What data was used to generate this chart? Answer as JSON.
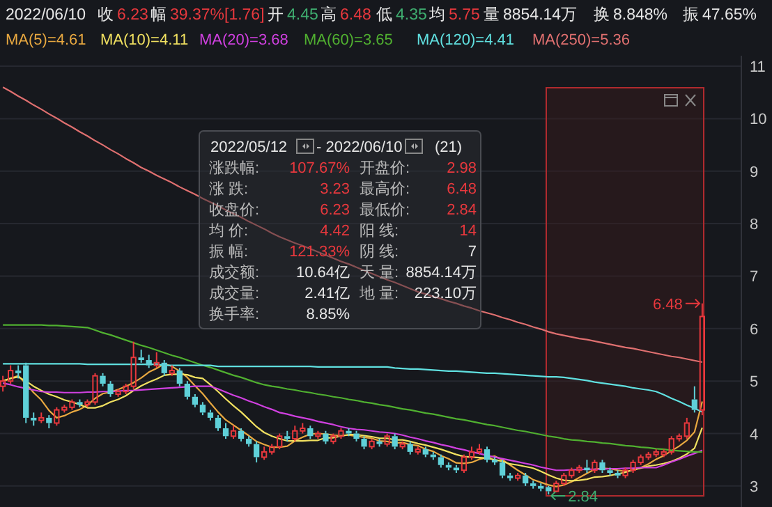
{
  "chart_data": {
    "type": "candlestick",
    "categories": [
      null,
      null,
      null,
      null,
      null,
      null,
      null,
      null,
      null,
      null,
      null,
      null,
      null,
      null,
      null,
      null,
      null,
      null,
      null,
      null,
      null,
      null,
      null,
      null,
      null,
      null,
      null,
      null,
      null,
      null,
      null,
      null,
      null,
      null,
      null,
      null,
      null,
      null,
      null,
      null,
      null,
      null,
      null,
      null,
      null,
      null,
      null,
      null,
      null,
      null,
      null,
      null,
      null,
      null,
      null,
      null,
      null,
      null,
      null,
      null,
      null,
      null,
      null,
      null,
      null,
      null,
      null,
      null,
      null,
      null,
      null,
      null,
      null,
      null,
      null,
      null,
      null,
      null,
      null,
      null,
      null,
      null,
      null,
      null,
      null,
      null,
      null,
      null,
      null,
      null,
      null,
      null
    ],
    "ylim": [
      2.6,
      11.2
    ],
    "yticks": [
      3,
      4,
      5,
      6,
      7,
      8,
      9,
      10,
      11
    ],
    "grid": "y",
    "legend": "top left",
    "tick_labels": "y",
    "ohlc": [
      [
        4.9,
        5.1,
        4.8,
        5.0
      ],
      [
        5.0,
        5.3,
        4.95,
        5.2
      ],
      [
        5.2,
        5.3,
        5.05,
        5.15
      ],
      [
        5.3,
        5.35,
        4.2,
        4.3
      ],
      [
        4.3,
        4.4,
        4.15,
        4.25
      ],
      [
        4.25,
        4.4,
        4.2,
        4.3
      ],
      [
        4.3,
        4.35,
        4.1,
        4.2
      ],
      [
        4.2,
        4.5,
        4.15,
        4.45
      ],
      [
        4.45,
        4.55,
        4.4,
        4.5
      ],
      [
        4.5,
        4.65,
        4.45,
        4.6
      ],
      [
        4.6,
        4.65,
        4.5,
        4.55
      ],
      [
        4.55,
        4.65,
        4.5,
        4.6
      ],
      [
        4.6,
        5.15,
        4.55,
        5.1
      ],
      [
        5.1,
        5.15,
        4.9,
        4.95
      ],
      [
        4.95,
        5.0,
        4.7,
        4.75
      ],
      [
        4.75,
        4.85,
        4.7,
        4.8
      ],
      [
        4.8,
        4.95,
        4.75,
        4.9
      ],
      [
        4.9,
        5.75,
        4.85,
        5.45
      ],
      [
        5.45,
        5.6,
        5.35,
        5.4
      ],
      [
        5.4,
        5.5,
        5.25,
        5.3
      ],
      [
        5.3,
        5.55,
        5.25,
        5.35
      ],
      [
        5.35,
        5.4,
        5.1,
        5.15
      ],
      [
        5.15,
        5.3,
        5.1,
        5.2
      ],
      [
        5.2,
        5.25,
        4.9,
        4.95
      ],
      [
        4.95,
        5.0,
        4.65,
        4.7
      ],
      [
        4.7,
        4.75,
        4.5,
        4.55
      ],
      [
        4.55,
        4.6,
        4.35,
        4.4
      ],
      [
        4.4,
        4.45,
        4.25,
        4.3
      ],
      [
        4.3,
        4.35,
        4.05,
        4.1
      ],
      [
        4.1,
        4.2,
        3.9,
        3.95
      ],
      [
        3.95,
        4.15,
        3.9,
        4.05
      ],
      [
        4.05,
        4.1,
        3.85,
        3.9
      ],
      [
        3.9,
        3.95,
        3.75,
        3.8
      ],
      [
        3.8,
        3.85,
        3.45,
        3.55
      ],
      [
        3.55,
        3.75,
        3.5,
        3.65
      ],
      [
        3.65,
        3.8,
        3.6,
        3.75
      ],
      [
        3.75,
        4.0,
        3.7,
        3.95
      ],
      [
        3.95,
        4.05,
        3.85,
        3.9
      ],
      [
        3.9,
        4.15,
        3.85,
        4.05
      ],
      [
        4.05,
        4.2,
        4.0,
        4.1
      ],
      [
        4.1,
        4.15,
        3.9,
        3.95
      ],
      [
        3.95,
        4.05,
        3.9,
        4.0
      ],
      [
        4.0,
        4.05,
        3.8,
        3.85
      ],
      [
        3.85,
        4.0,
        3.8,
        3.95
      ],
      [
        3.95,
        4.1,
        3.9,
        4.05
      ],
      [
        4.05,
        4.1,
        3.95,
        4.0
      ],
      [
        4.0,
        4.05,
        3.85,
        3.9
      ],
      [
        3.9,
        3.95,
        3.7,
        3.75
      ],
      [
        3.75,
        3.9,
        3.7,
        3.85
      ],
      [
        3.85,
        3.9,
        3.75,
        3.8
      ],
      [
        3.8,
        4.0,
        3.75,
        3.95
      ],
      [
        3.95,
        4.0,
        3.7,
        3.75
      ],
      [
        3.75,
        3.85,
        3.7,
        3.8
      ],
      [
        3.8,
        3.85,
        3.6,
        3.65
      ],
      [
        3.65,
        3.75,
        3.6,
        3.7
      ],
      [
        3.7,
        3.75,
        3.55,
        3.6
      ],
      [
        3.6,
        3.65,
        3.5,
        3.55
      ],
      [
        3.55,
        3.6,
        3.35,
        3.4
      ],
      [
        3.4,
        3.45,
        3.3,
        3.35
      ],
      [
        3.35,
        3.4,
        3.25,
        3.3
      ],
      [
        3.3,
        3.6,
        3.25,
        3.55
      ],
      [
        3.55,
        3.75,
        3.5,
        3.65
      ],
      [
        3.65,
        3.8,
        3.6,
        3.7
      ],
      [
        3.7,
        3.75,
        3.45,
        3.5
      ],
      [
        3.5,
        3.55,
        3.4,
        3.45
      ],
      [
        3.45,
        3.5,
        3.15,
        3.2
      ],
      [
        3.2,
        3.25,
        3.1,
        3.15
      ],
      [
        3.15,
        3.25,
        3.1,
        3.2
      ],
      [
        3.2,
        3.25,
        3.0,
        3.05
      ],
      [
        3.05,
        3.1,
        2.95,
        3.0
      ],
      [
        3.0,
        3.05,
        2.9,
        2.95
      ],
      [
        2.98,
        3.0,
        2.84,
        2.9
      ],
      [
        2.9,
        3.1,
        2.88,
        3.05
      ],
      [
        3.05,
        3.25,
        3.0,
        3.2
      ],
      [
        3.2,
        3.35,
        3.15,
        3.3
      ],
      [
        3.3,
        3.4,
        3.25,
        3.35
      ],
      [
        3.35,
        3.5,
        3.25,
        3.3
      ],
      [
        3.3,
        3.5,
        3.25,
        3.45
      ],
      [
        3.45,
        3.5,
        3.25,
        3.3
      ],
      [
        3.3,
        3.35,
        3.2,
        3.25
      ],
      [
        3.25,
        3.3,
        3.15,
        3.2
      ],
      [
        3.2,
        3.35,
        3.15,
        3.3
      ],
      [
        3.3,
        3.5,
        3.25,
        3.45
      ],
      [
        3.45,
        3.6,
        3.4,
        3.55
      ],
      [
        3.55,
        3.65,
        3.5,
        3.6
      ],
      [
        3.6,
        3.7,
        3.55,
        3.65
      ],
      [
        3.6,
        3.7,
        3.55,
        3.65
      ],
      [
        3.65,
        3.95,
        3.6,
        3.9
      ],
      [
        3.9,
        4.0,
        3.85,
        3.95
      ],
      [
        3.95,
        4.3,
        3.9,
        4.2
      ],
      [
        4.65,
        4.9,
        4.4,
        4.45
      ],
      [
        4.45,
        6.48,
        4.35,
        6.23
      ]
    ],
    "series": [
      {
        "name": "MA(5)=4.61",
        "type": "line",
        "color": "#e8a840",
        "values": [
          5.0,
          5.05,
          5.1,
          4.95,
          4.78,
          4.64,
          4.44,
          4.3,
          4.34,
          4.41,
          4.46,
          4.54,
          4.67,
          4.76,
          4.79,
          4.84,
          4.9,
          4.97,
          5.06,
          5.17,
          5.24,
          5.33,
          5.28,
          5.19,
          5.07,
          4.91,
          4.76,
          4.58,
          4.41,
          4.26,
          4.16,
          4.06,
          3.96,
          3.85,
          3.79,
          3.74,
          3.74,
          3.76,
          3.86,
          3.93,
          3.99,
          4.0,
          3.99,
          3.97,
          3.96,
          3.97,
          3.95,
          3.93,
          3.91,
          3.86,
          3.85,
          3.82,
          3.83,
          3.79,
          3.77,
          3.7,
          3.66,
          3.58,
          3.52,
          3.44,
          3.43,
          3.45,
          3.51,
          3.54,
          3.57,
          3.5,
          3.4,
          3.3,
          3.21,
          3.12,
          3.07,
          3.02,
          2.99,
          3.02,
          3.08,
          3.16,
          3.24,
          3.32,
          3.34,
          3.33,
          3.3,
          3.28,
          3.3,
          3.35,
          3.42,
          3.51,
          3.58,
          3.67,
          3.76,
          3.87,
          4.03,
          4.61
        ]
      },
      {
        "name": "MA(10)=4.11",
        "type": "line",
        "color": "#f0e060",
        "values": [
          5.0,
          5.05,
          5.08,
          5.0,
          4.9,
          4.82,
          4.75,
          4.7,
          4.64,
          4.6,
          4.55,
          4.49,
          4.49,
          4.53,
          4.6,
          4.65,
          4.72,
          4.82,
          4.91,
          4.98,
          5.04,
          5.11,
          5.13,
          5.13,
          5.12,
          5.07,
          5.05,
          4.93,
          4.8,
          4.66,
          4.53,
          4.41,
          4.27,
          4.13,
          4.02,
          3.95,
          3.9,
          3.86,
          3.86,
          3.86,
          3.87,
          3.87,
          3.92,
          3.92,
          3.95,
          3.98,
          3.98,
          3.96,
          3.94,
          3.91,
          3.91,
          3.88,
          3.88,
          3.85,
          3.81,
          3.78,
          3.74,
          3.7,
          3.65,
          3.6,
          3.56,
          3.55,
          3.54,
          3.53,
          3.5,
          3.47,
          3.42,
          3.4,
          3.37,
          3.34,
          3.28,
          3.21,
          3.15,
          3.11,
          3.1,
          3.11,
          3.13,
          3.17,
          3.18,
          3.2,
          3.23,
          3.26,
          3.31,
          3.34,
          3.38,
          3.4,
          3.43,
          3.47,
          3.53,
          3.61,
          3.72,
          4.11
        ]
      },
      {
        "name": "MA(20)=3.68",
        "type": "line",
        "color": "#d040e0",
        "values": [
          4.96,
          4.93,
          4.89,
          4.86,
          4.83,
          4.8,
          4.79,
          4.79,
          4.78,
          4.78,
          4.78,
          4.79,
          4.79,
          4.8,
          4.8,
          4.81,
          4.82,
          4.82,
          4.83,
          4.84,
          4.85,
          4.86,
          4.87,
          4.88,
          4.89,
          4.9,
          4.9,
          4.9,
          4.85,
          4.79,
          4.73,
          4.68,
          4.62,
          4.57,
          4.51,
          4.46,
          4.4,
          4.37,
          4.33,
          4.3,
          4.27,
          4.23,
          4.2,
          4.17,
          4.13,
          4.1,
          4.08,
          4.07,
          4.05,
          4.03,
          4.02,
          4.0,
          3.97,
          3.93,
          3.9,
          3.86,
          3.83,
          3.79,
          3.76,
          3.72,
          3.69,
          3.65,
          3.62,
          3.58,
          3.55,
          3.52,
          3.49,
          3.46,
          3.43,
          3.4,
          3.36,
          3.33,
          3.3,
          3.3,
          3.31,
          3.31,
          3.32,
          3.32,
          3.32,
          3.33,
          3.33,
          3.34,
          3.34,
          3.35,
          3.35,
          3.35,
          3.4,
          3.46,
          3.51,
          3.57,
          3.62,
          3.68
        ]
      },
      {
        "name": "MA(60)=3.65",
        "type": "line",
        "color": "#50b030",
        "values": [
          6.07,
          6.07,
          6.07,
          6.07,
          6.07,
          6.07,
          6.06,
          6.06,
          6.05,
          6.04,
          6.03,
          6.02,
          5.97,
          5.92,
          5.88,
          5.83,
          5.78,
          5.73,
          5.68,
          5.64,
          5.59,
          5.54,
          5.49,
          5.45,
          5.4,
          5.35,
          5.3,
          5.26,
          5.21,
          5.16,
          5.11,
          5.07,
          5.02,
          4.97,
          4.93,
          4.9,
          4.88,
          4.85,
          4.83,
          4.8,
          4.78,
          4.75,
          4.73,
          4.7,
          4.68,
          4.65,
          4.63,
          4.6,
          4.58,
          4.55,
          4.53,
          4.5,
          4.47,
          4.45,
          4.42,
          4.39,
          4.37,
          4.34,
          4.31,
          4.28,
          4.26,
          4.23,
          4.2,
          4.17,
          4.15,
          4.12,
          4.09,
          4.06,
          4.04,
          4.01,
          3.98,
          3.95,
          3.93,
          3.9,
          3.88,
          3.87,
          3.85,
          3.84,
          3.82,
          3.81,
          3.79,
          3.77,
          3.76,
          3.74,
          3.73,
          3.71,
          3.7,
          3.68,
          3.67,
          3.66,
          3.65,
          3.65
        ]
      },
      {
        "name": "MA(120)=4.41",
        "type": "line",
        "color": "#60e0e0",
        "values": [
          5.33,
          5.33,
          5.33,
          5.33,
          5.33,
          5.33,
          5.33,
          5.33,
          5.33,
          5.33,
          5.33,
          5.32,
          5.32,
          5.32,
          5.32,
          5.32,
          5.32,
          5.32,
          5.32,
          5.32,
          5.32,
          5.3,
          5.3,
          5.3,
          5.3,
          5.3,
          5.3,
          5.3,
          5.28,
          5.28,
          5.28,
          5.28,
          5.28,
          5.28,
          5.28,
          5.28,
          5.28,
          5.28,
          5.28,
          5.28,
          5.28,
          5.27,
          5.27,
          5.27,
          5.27,
          5.27,
          5.27,
          5.27,
          5.27,
          5.27,
          5.27,
          5.25,
          5.24,
          5.23,
          5.23,
          5.22,
          5.21,
          5.2,
          5.19,
          5.19,
          5.18,
          5.17,
          5.16,
          5.15,
          5.15,
          5.14,
          5.13,
          5.12,
          5.11,
          5.1,
          5.09,
          5.08,
          5.08,
          5.07,
          5.05,
          5.03,
          5.01,
          4.98,
          4.96,
          4.94,
          4.92,
          4.9,
          4.87,
          4.85,
          4.83,
          4.8,
          4.74,
          4.67,
          4.61,
          4.54,
          4.48,
          4.41
        ]
      },
      {
        "name": "MA(250)=5.36",
        "type": "line",
        "color": "#e07070",
        "values": [
          10.6,
          10.52,
          10.43,
          10.35,
          10.26,
          10.18,
          10.09,
          10.01,
          9.92,
          9.84,
          9.75,
          9.67,
          9.58,
          9.5,
          9.41,
          9.33,
          9.24,
          9.16,
          9.07,
          9.0,
          8.92,
          8.85,
          8.78,
          8.7,
          8.63,
          8.56,
          8.48,
          8.41,
          8.34,
          8.26,
          8.19,
          8.12,
          8.04,
          7.97,
          7.9,
          7.82,
          7.75,
          7.69,
          7.63,
          7.58,
          7.52,
          7.46,
          7.4,
          7.34,
          7.28,
          7.23,
          7.17,
          7.11,
          7.05,
          6.99,
          6.93,
          6.88,
          6.82,
          6.76,
          6.7,
          6.66,
          6.61,
          6.57,
          6.52,
          6.48,
          6.43,
          6.39,
          6.34,
          6.3,
          6.26,
          6.21,
          6.17,
          6.12,
          6.08,
          6.03,
          5.99,
          5.94,
          5.9,
          5.87,
          5.84,
          5.81,
          5.79,
          5.76,
          5.73,
          5.7,
          5.67,
          5.64,
          5.62,
          5.59,
          5.56,
          5.53,
          5.5,
          5.47,
          5.45,
          5.42,
          5.39,
          5.36
        ]
      }
    ],
    "annotations": [
      "2022/06/10",
      "收",
      "6.23",
      "幅",
      "39.37%[1.76]",
      "开",
      "4.45",
      "高",
      "6.48",
      "低",
      "4.35",
      "均",
      "5.75",
      "量",
      "8854.14万",
      "换",
      "8.848%",
      "振",
      "47.65%",
      "2022/05/12",
      "- 2022/06/10",
      "(21)",
      "涨跌幅:",
      "107.67%",
      "涨 跌:",
      "3.23",
      "收盘价:",
      "6.23",
      "均 价:",
      "4.42",
      "振 幅:",
      "121.33%",
      "成交额:",
      "10.64亿",
      "成交量:",
      "2.41亿",
      "换手率:",
      "8.85%",
      "开盘价:",
      "2.98",
      "最高价:",
      "6.48",
      "最低价:",
      "2.84",
      "阳 线:",
      "14",
      "阴 线:",
      "7",
      "天 量:",
      "8854.14万",
      "地 量:",
      "223.10万",
      "6.48",
      "2.84"
    ]
  }
}
